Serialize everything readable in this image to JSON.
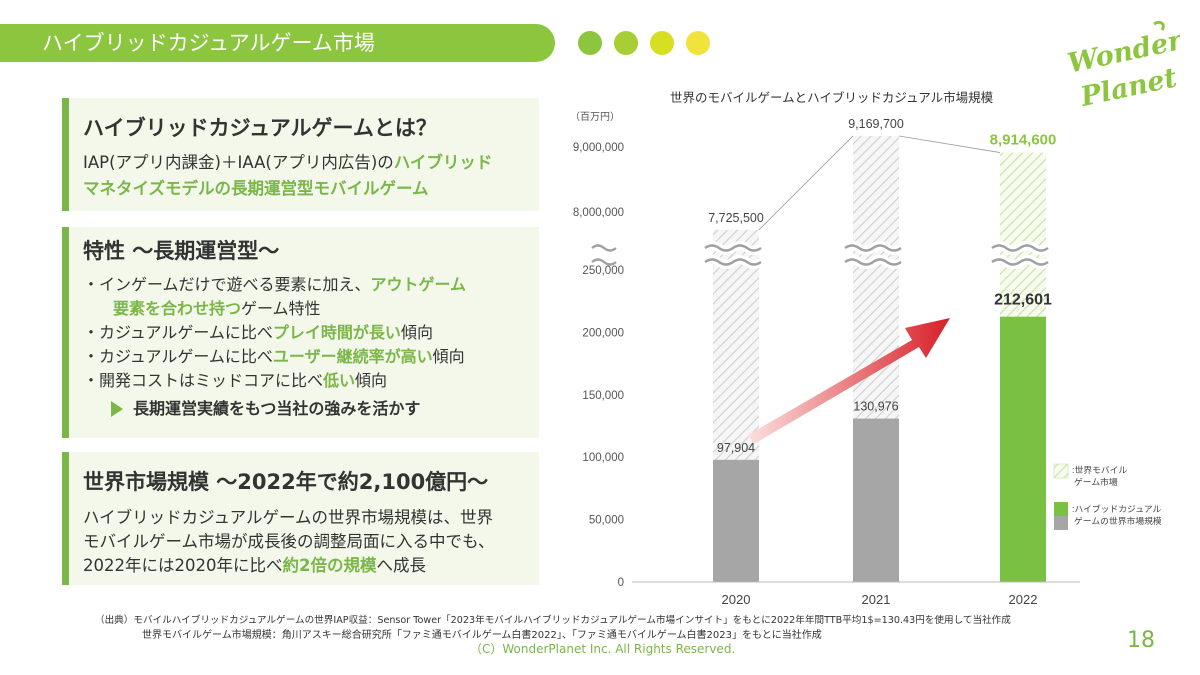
{
  "header": {
    "title": "ハイブリッドカジュアルゲーム市場",
    "dot_colors": [
      "#8cc63f",
      "#a7cf35",
      "#d7df23",
      "#f0e33c"
    ]
  },
  "logo": {
    "line1": "Wonder",
    "line2": "Planet"
  },
  "section1": {
    "title": "ハイブリッドカジュアルゲームとは？",
    "line1_plain": "IAP(アプリ内課金)＋IAA(アプリ内広告)の",
    "line1_green": "ハイブリッド",
    "line2_green": "マネタイズモデルの長期運営型モバイルゲーム"
  },
  "section2": {
    "title": "特性 ～長期運営型～",
    "b1_plain": "・インゲームだけで遊べる要素に加え、",
    "b1_green": "アウトゲーム",
    "b1b_green": "要素を合わせ持つ",
    "b1b_plain": "ゲーム特性",
    "b2_plain": "・カジュアルゲームに比べ",
    "b2_green": "プレイ時間が長い",
    "b2_tail": "傾向",
    "b3_plain": "・カジュアルゲームに比べ",
    "b3_green": "ユーザー継続率が高い",
    "b3_tail": "傾向",
    "b4_plain": "・開発コストはミッドコアに比べ",
    "b4_green": "低い",
    "b4_tail": "傾向",
    "callout": "長期運営実績をもつ当社の強みを活かす"
  },
  "section3": {
    "title": "世界市場規模 ～2022年で約2,100億円～",
    "l1": "ハイブリッドカジュアルゲームの世界市場規模は、世界",
    "l2": "モバイルゲーム市場が成長後の調整局面に入る中でも、",
    "l3_plain": "2022年には2020年に比べ",
    "l3_green": "約2倍の規模",
    "l3_tail": "へ成長"
  },
  "chart_data": {
    "type": "bar",
    "title": "世界のモバイルゲームとハイブリッドカジュアル市場規模",
    "unit_label": "（百万円）",
    "categories": [
      "2020",
      "2021",
      "2022"
    ],
    "series": [
      {
        "name": ":世界モバイル ゲーム市場",
        "values": [
          7725500,
          9169700,
          8914600
        ],
        "value_labels": [
          "7,725,500",
          "9,169,700",
          "8,914,600"
        ]
      },
      {
        "name": ":ハイブッドカジュアル ゲームの世界市場規模",
        "values": [
          97904,
          130976,
          212601
        ],
        "value_labels": [
          "97,904",
          "130,976",
          "212,601"
        ]
      }
    ],
    "yticks_lower": [
      {
        "value": 0,
        "label": "0"
      },
      {
        "value": 50000,
        "label": "50,000"
      },
      {
        "value": 100000,
        "label": "100,000"
      },
      {
        "value": 150000,
        "label": "150,000"
      },
      {
        "value": 200000,
        "label": "200,000"
      },
      {
        "value": 250000,
        "label": "250,000"
      }
    ],
    "yticks_upper": [
      {
        "value": 8000000,
        "label": "8,000,000"
      },
      {
        "value": 9000000,
        "label": "9,000,000"
      }
    ],
    "axis_break": true,
    "legend": {
      "item1_line1": ":世界モバイル",
      "item1_line2": "ゲーム市場",
      "item2_line1": ":ハイブッドカジュアル",
      "item2_line2": "ゲームの世界市場規模"
    },
    "colors": {
      "gray": "#a6a6a6",
      "green": "#7ac143",
      "arrow": "#d81f26"
    }
  },
  "footnotes": {
    "line1": "（出典）モバイルハイブリッドカジュアルゲームの世界IAP収益：Sensor Tower「2023年モバイルハイブリッドカジュアルゲーム市場インサイト」をもとに2022年年間TTB平均1$=130.43円を使用して当社作成",
    "line2": "世界モバイルゲーム市場規模：角川アスキー総合研究所「ファミ通モバイルゲーム白書2022」、「ファミ通モバイルゲーム白書2023」をもとに当社作成"
  },
  "copyright": "（C）WonderPlanet Inc.  All Rights Reserved.",
  "page_number": "18"
}
